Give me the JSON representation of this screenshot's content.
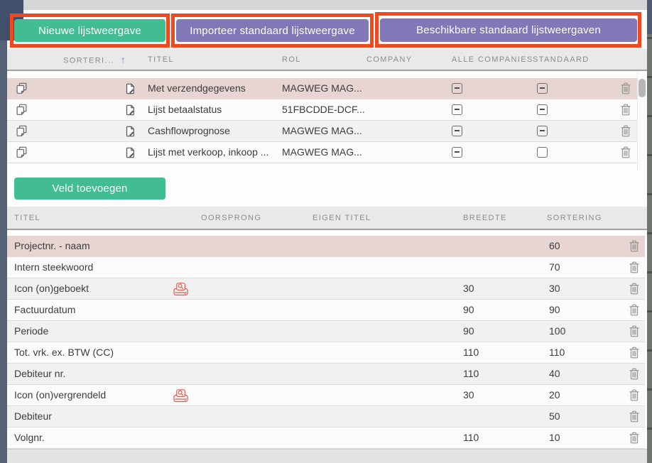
{
  "colors": {
    "accent_green": "#41bc93",
    "accent_purple": "#8278b8",
    "annotation_red": "#f2481f",
    "selected_row": "#e6d5d2"
  },
  "toolbar": {
    "new_list_view": "Nieuwe lijstweergave",
    "import_default": "Importeer standaard lijstweergave",
    "available_defaults": "Beschikbare standaard lijstweergaven",
    "add_field": "Veld toevoegen"
  },
  "list_table": {
    "headers": {
      "sort": "SORTERI...",
      "sort_arrow": "↑",
      "title": "TITEL",
      "role": "ROL",
      "company": "COMPANY",
      "all_companies": "ALLE COMPANIES",
      "default": "STANDAARD"
    },
    "rows": [
      {
        "title": "Met verzendgegevens",
        "role": "MAGWEG MAG...",
        "all_companies": "indeterminate",
        "default": "indeterminate"
      },
      {
        "title": "Lijst betaalstatus",
        "role": "51FBCDDE-DCF...",
        "all_companies": "indeterminate",
        "default": "indeterminate"
      },
      {
        "title": "Cashflowprognose",
        "role": "MAGWEG MAG...",
        "all_companies": "indeterminate",
        "default": "indeterminate"
      },
      {
        "title": "Lijst met verkoop, inkoop ...",
        "role": "MAGWEG MAG...",
        "all_companies": "indeterminate",
        "default": "unchecked"
      }
    ]
  },
  "fields_table": {
    "headers": {
      "title": "TITEL",
      "origin": "OORSPRONG",
      "custom_title": "EIGEN TITEL",
      "width": "BREEDTE",
      "sorting": "SORTERING"
    },
    "rows": [
      {
        "title": "Projectnr. - naam",
        "origin_icon": false,
        "width": "",
        "sorting": "60"
      },
      {
        "title": "Intern steekwoord",
        "origin_icon": false,
        "width": "",
        "sorting": "70"
      },
      {
        "title": "Icon (on)geboekt",
        "origin_icon": true,
        "width": "30",
        "sorting": "30"
      },
      {
        "title": "Factuurdatum",
        "origin_icon": false,
        "width": "90",
        "sorting": "90"
      },
      {
        "title": "Periode",
        "origin_icon": false,
        "width": "90",
        "sorting": "100"
      },
      {
        "title": "Tot. vrk. ex. BTW (CC)",
        "origin_icon": false,
        "width": "110",
        "sorting": "110"
      },
      {
        "title": "Debiteur nr.",
        "origin_icon": false,
        "width": "110",
        "sorting": "40"
      },
      {
        "title": "Icon (on)vergrendeld",
        "origin_icon": true,
        "width": "30",
        "sorting": "20"
      },
      {
        "title": "Debiteur",
        "origin_icon": false,
        "width": "",
        "sorting": "50"
      },
      {
        "title": "Volgnr.",
        "origin_icon": false,
        "width": "110",
        "sorting": "10"
      }
    ]
  }
}
